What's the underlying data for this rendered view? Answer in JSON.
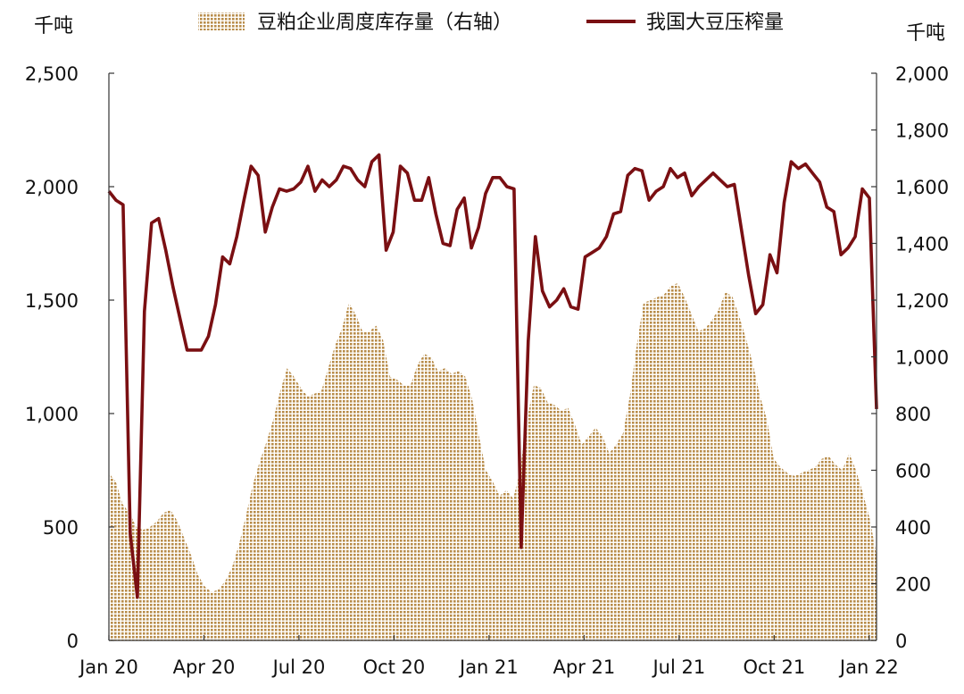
{
  "chart_data": {
    "type": "area+line",
    "left_unit": "千吨",
    "right_unit": "千吨",
    "left_ylim": [
      0,
      2500
    ],
    "right_ylim": [
      0,
      2000
    ],
    "left_ticks": [
      "0",
      "500",
      "1,000",
      "1,500",
      "2,000",
      "2,500"
    ],
    "left_tick_values": [
      0,
      500,
      1000,
      1500,
      2000,
      2500
    ],
    "right_ticks": [
      "0",
      "200",
      "400",
      "600",
      "800",
      "1,000",
      "1,200",
      "1,400",
      "1,600",
      "1,800",
      "2,000"
    ],
    "right_tick_values": [
      0,
      200,
      400,
      600,
      800,
      1000,
      1200,
      1400,
      1600,
      1800,
      2000
    ],
    "x_ticks": [
      "Jan 20",
      "Apr 20",
      "Jul 20",
      "Oct 20",
      "Jan 21",
      "Apr 21",
      "Jul 21",
      "Oct 21",
      "Jan 22"
    ],
    "x_tick_week": [
      0,
      13,
      26,
      39,
      52,
      65,
      78,
      91,
      104
    ],
    "x_range_weeks": [
      0,
      105
    ],
    "grid": false,
    "legend_position": "top",
    "series": [
      {
        "name": "豆粕企业周度库存量（右轴）",
        "type": "area",
        "axis": "right",
        "color": "#c8a46c",
        "week_start": 0,
        "values": [
          590,
          560,
          480,
          450,
          400,
          390,
          400,
          420,
          450,
          460,
          420,
          360,
          300,
          230,
          190,
          170,
          180,
          210,
          260,
          340,
          440,
          550,
          630,
          700,
          780,
          880,
          960,
          930,
          890,
          860,
          870,
          880,
          960,
          1040,
          1100,
          1190,
          1150,
          1090,
          1090,
          1110,
          1060,
          930,
          920,
          900,
          900,
          970,
          1010,
          1000,
          950,
          960,
          940,
          950,
          930,
          850,
          720,
          600,
          560,
          510,
          530,
          500,
          600,
          780,
          900,
          890,
          840,
          830,
          810,
          820,
          760,
          690,
          720,
          750,
          720,
          660,
          690,
          730,
          860,
          1040,
          1190,
          1200,
          1210,
          1220,
          1250,
          1260,
          1210,
          1150,
          1090,
          1100,
          1130,
          1170,
          1230,
          1210,
          1140,
          1060,
          970,
          860,
          780,
          640,
          610,
          590,
          580,
          590,
          600,
          610,
          640,
          650,
          620,
          600,
          660,
          600,
          520,
          430,
          300
        ]
      },
      {
        "name": "我国大豆压榨量",
        "type": "line",
        "axis": "left",
        "color": "#7a0f12",
        "week_start": 0,
        "values": [
          1980,
          1940,
          1920,
          470,
          190,
          1450,
          1840,
          1860,
          1720,
          1560,
          1420,
          1280,
          1280,
          1280,
          1340,
          1480,
          1690,
          1660,
          1780,
          1940,
          2090,
          2050,
          1800,
          1910,
          1990,
          1980,
          1990,
          2020,
          2090,
          1980,
          2030,
          2000,
          2030,
          2090,
          2080,
          2030,
          2000,
          2110,
          2140,
          1720,
          1800,
          2090,
          2060,
          1940,
          1940,
          2040,
          1880,
          1750,
          1740,
          1900,
          1950,
          1730,
          1820,
          1970,
          2040,
          2040,
          2000,
          1990,
          410,
          1320,
          1780,
          1540,
          1470,
          1500,
          1550,
          1470,
          1460,
          1690,
          1710,
          1730,
          1780,
          1880,
          1890,
          2050,
          2080,
          2070,
          1940,
          1980,
          2000,
          2080,
          2040,
          2060,
          1960,
          2000,
          2030,
          2060,
          2030,
          2000,
          2010,
          1810,
          1610,
          1440,
          1480,
          1700,
          1620,
          1930,
          2110,
          2080,
          2100,
          2060,
          2020,
          1910,
          1890,
          1700,
          1730,
          1780,
          1990,
          1950,
          1020
        ]
      }
    ]
  }
}
